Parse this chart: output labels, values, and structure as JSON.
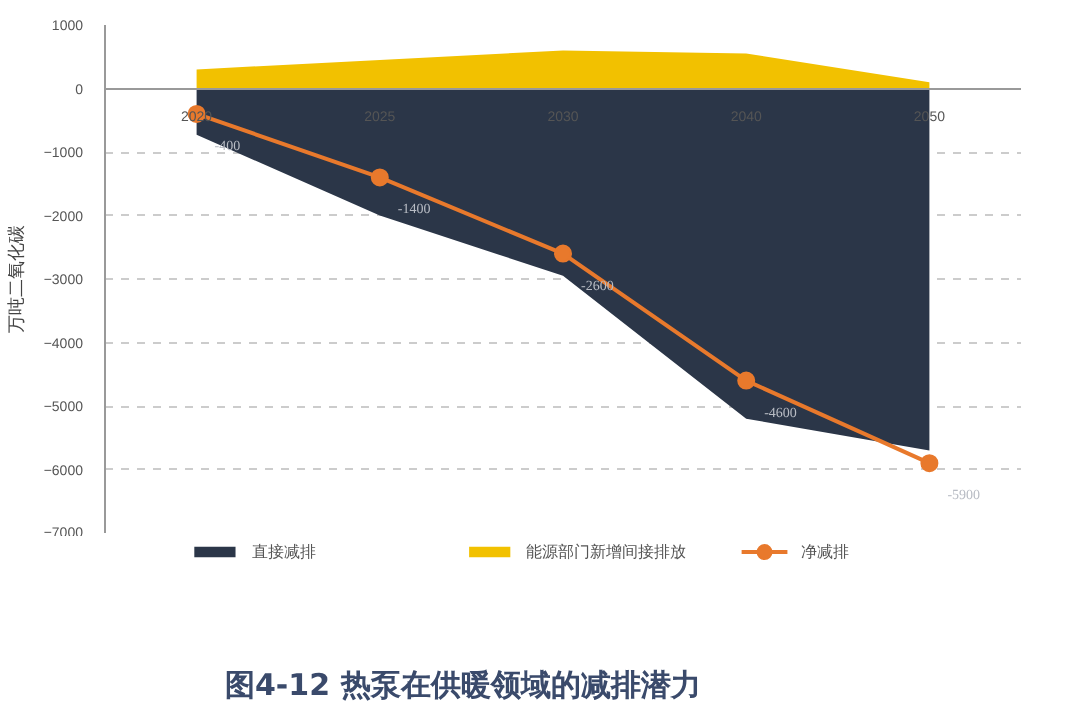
{
  "chart_data": {
    "type": "area",
    "title": "图4-12 热泵在供暖领域的减排潜力",
    "ylabel": "万吨二氧化碳",
    "categories": [
      "2020",
      "2025",
      "2030",
      "2040",
      "2050"
    ],
    "series": [
      {
        "name": "直接减排",
        "color": "#2b3648",
        "values": [
          -730,
          -2000,
          -2950,
          -5200,
          -5700
        ]
      },
      {
        "name": "能源部门新增间接排放",
        "color": "#f2c100",
        "values": [
          300,
          450,
          600,
          550,
          100
        ]
      },
      {
        "name": "净减排",
        "type": "line",
        "color": "#e8792c",
        "values": [
          -400,
          -1400,
          -2600,
          -4600,
          -5900
        ],
        "marker": "circle",
        "data_labels": true
      }
    ],
    "ylim": [
      -7000,
      1000
    ],
    "yticks": [
      1000,
      0,
      -1000,
      -2000,
      -3000,
      -4000,
      -5000,
      -6000,
      -7000
    ],
    "grid": "y",
    "legend": "bottom"
  }
}
